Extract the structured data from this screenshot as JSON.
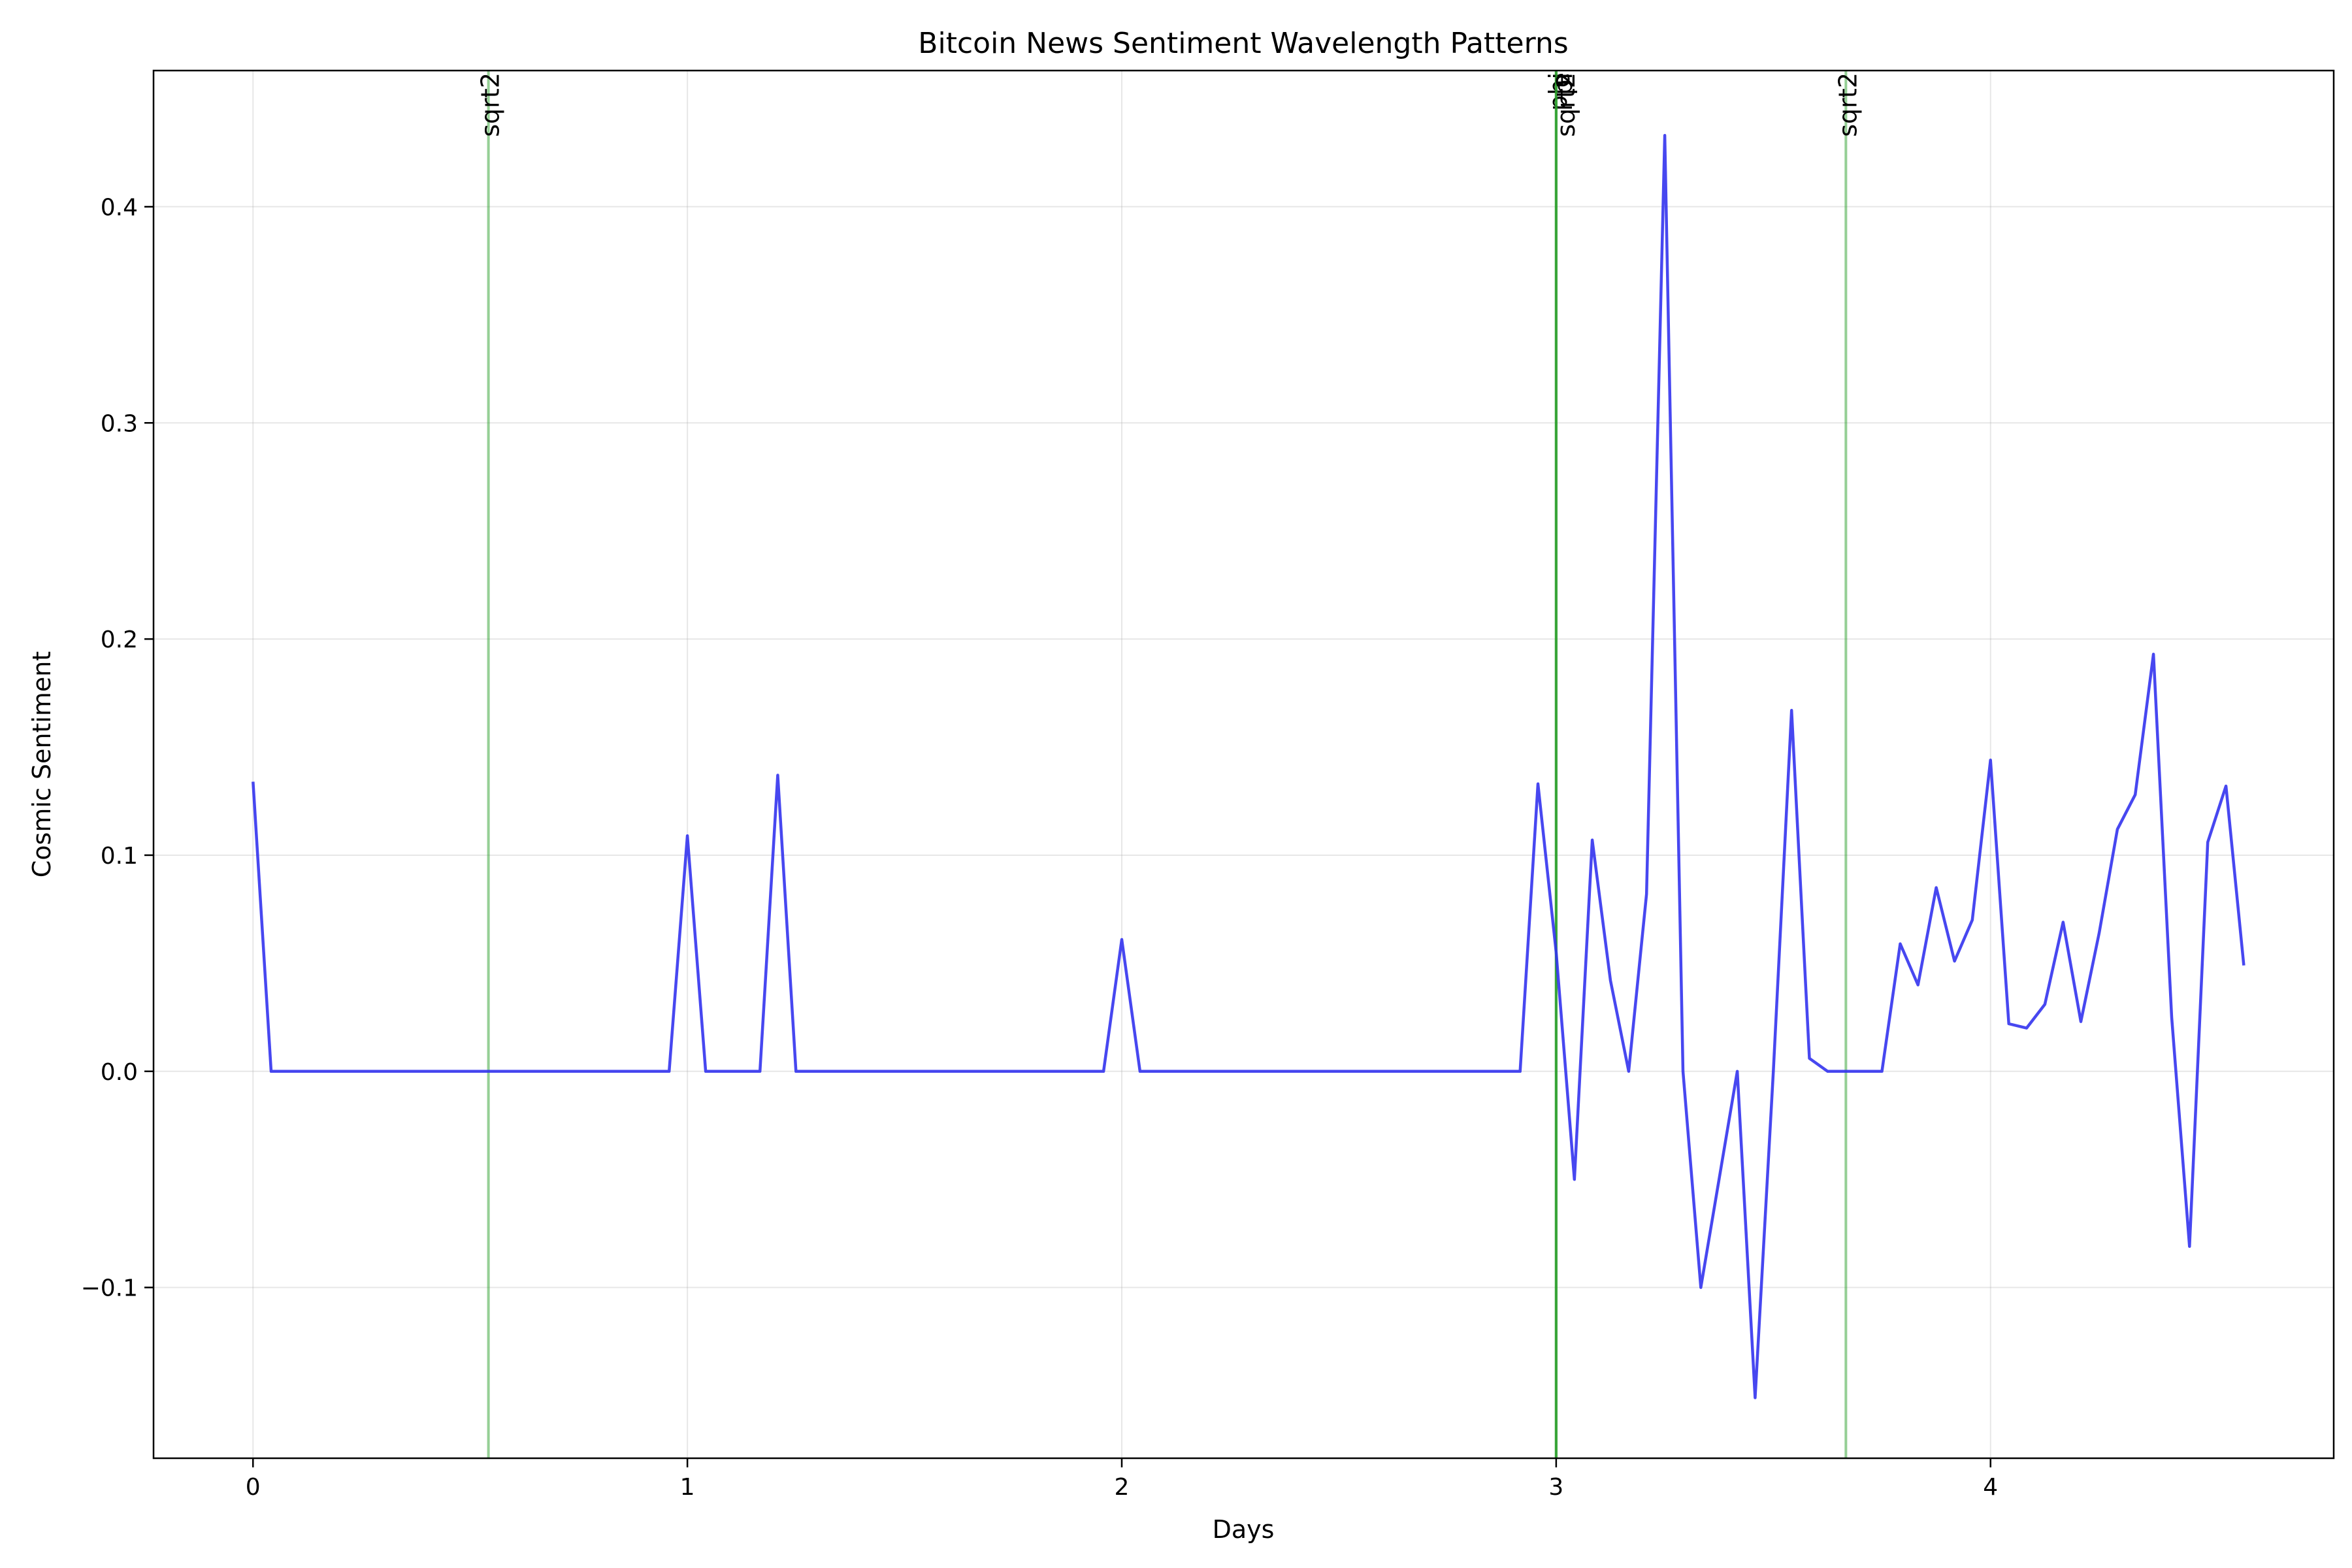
{
  "chart_data": {
    "type": "line",
    "title": "Bitcoin News Sentiment Wavelength Patterns",
    "xlabel": "Days",
    "ylabel": "Cosmic Sentiment",
    "xlim": [
      -0.229,
      4.79
    ],
    "ylim": [
      -0.179,
      0.463
    ],
    "xticks": [
      0,
      1,
      2,
      3,
      4
    ],
    "yticks": [
      -0.1,
      0.0,
      0.1,
      0.2,
      0.3,
      0.4
    ],
    "xtick_labels": [
      "0",
      "1",
      "2",
      "3",
      "4"
    ],
    "ytick_labels": [
      "−0.1",
      "0.0",
      "0.1",
      "0.2",
      "0.3",
      "0.4"
    ],
    "grid": true,
    "series": [
      {
        "color": "#3333ee",
        "x": [
          0,
          0.0417,
          0.958,
          1.0,
          1.042,
          1.167,
          1.208,
          1.25,
          1.958,
          2.0,
          2.042,
          2.917,
          2.958,
          3.0,
          3.042,
          3.083,
          3.125,
          3.167,
          3.208,
          3.25,
          3.292,
          3.333,
          3.375,
          3.417,
          3.458,
          3.5,
          3.542,
          3.583,
          3.625,
          3.667,
          3.708,
          3.75,
          3.792,
          3.833,
          3.875,
          3.917,
          3.958,
          4.0,
          4.042,
          4.083,
          4.125,
          4.167,
          4.208,
          4.25,
          4.292,
          4.333,
          4.375,
          4.417,
          4.458,
          4.5,
          4.542,
          4.583
        ],
        "y": [
          0.134,
          0.0,
          0.0,
          0.109,
          0.0,
          0.0,
          0.137,
          0.0,
          0.0,
          0.061,
          0.0,
          0.0,
          0.133,
          0.055,
          -0.05,
          0.107,
          0.042,
          0.0,
          0.082,
          0.433,
          0.0,
          -0.1,
          -0.05,
          0.0,
          -0.151,
          0.0,
          0.167,
          0.006,
          0.0,
          0.0,
          0.0,
          0.0,
          0.059,
          0.04,
          0.085,
          0.051,
          0.07,
          0.144,
          0.022,
          0.02,
          0.031,
          0.069,
          0.023,
          0.064,
          0.112,
          0.128,
          0.193,
          0.025,
          -0.081,
          0.106,
          0.132,
          0.049
        ]
      }
    ],
    "markers": [
      {
        "x": 0.542,
        "label": "sqrt2",
        "color": "#2ca02c",
        "alpha": 0.5
      },
      {
        "x": 3.0,
        "label": "phi",
        "color": "#2ca02c",
        "alpha": 0.5
      },
      {
        "x": 3.0,
        "label": "e",
        "color": "#2ca02c",
        "alpha": 0.5
      },
      {
        "x": 3.0,
        "label": "pi",
        "color": "#2ca02c",
        "alpha": 0.5
      },
      {
        "x": 3.0,
        "label": "sqrt2",
        "color": "#2ca02c",
        "alpha": 0.5
      },
      {
        "x": 3.667,
        "label": "sqrt2",
        "color": "#2ca02c",
        "alpha": 0.5
      }
    ]
  }
}
